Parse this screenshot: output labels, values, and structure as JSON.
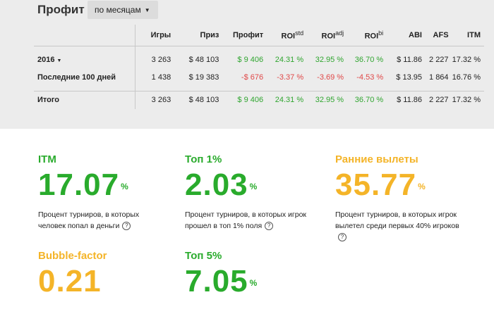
{
  "header": {
    "title": "Профит",
    "period_selector": "по месяцам"
  },
  "table": {
    "columns": [
      "",
      "Игры",
      "Приз",
      "Профит",
      "ROI",
      "ROI",
      "ROI",
      "ABI",
      "AFS",
      "ITM"
    ],
    "column_sups": [
      "std",
      "adj",
      "bi"
    ],
    "rows": [
      {
        "name": "2016",
        "games": "3 263",
        "prize": "$ 48 103",
        "profit": "$ 9 406",
        "roi_std": "24.31 %",
        "roi_adj": "32.95 %",
        "roi_bi": "36.70 %",
        "abi": "$ 11.86",
        "afs": "2 227",
        "itm": "17.32 %"
      },
      {
        "name": "Последние 100 дней",
        "games": "1 438",
        "prize": "$ 19 383",
        "profit": "-$ 676",
        "roi_std": "-3.37 %",
        "roi_adj": "-3.69 %",
        "roi_bi": "-4.53 %",
        "abi": "$ 13.95",
        "afs": "1 864",
        "itm": "16.76 %"
      }
    ],
    "total": {
      "name": "Итого",
      "games": "3 263",
      "prize": "$ 48 103",
      "profit": "$ 9 406",
      "roi_std": "24.31 %",
      "roi_adj": "32.95 %",
      "roi_bi": "36.70 %",
      "abi": "$ 11.86",
      "afs": "2 227",
      "itm": "17.32 %"
    }
  },
  "metrics": {
    "itm": {
      "label": "ITM",
      "value": "17.07",
      "unit": "%",
      "desc": "Процент турниров, в которых человек попал в деньги"
    },
    "top1": {
      "label": "Топ 1%",
      "value": "2.03",
      "unit": "%",
      "desc": "Процент турниров, в которых игрок прошел в топ 1% поля"
    },
    "early": {
      "label": "Ранние вылеты",
      "value": "35.77",
      "unit": "%",
      "desc": "Процент турниров, в которых игрок вылетел среди первых 40% игроков"
    },
    "bubble": {
      "label": "Bubble-factor",
      "value": "0.21"
    },
    "top5": {
      "label": "Топ 5%",
      "value": "7.05",
      "unit": "%"
    }
  },
  "colors": {
    "green": "#29ab2c",
    "orange": "#f4b428",
    "negative": "#e04848",
    "panel_bg": "#ececec"
  },
  "icons": {
    "help": "question-circle-icon",
    "caret": "caret-down-icon"
  },
  "help_glyph": "?"
}
